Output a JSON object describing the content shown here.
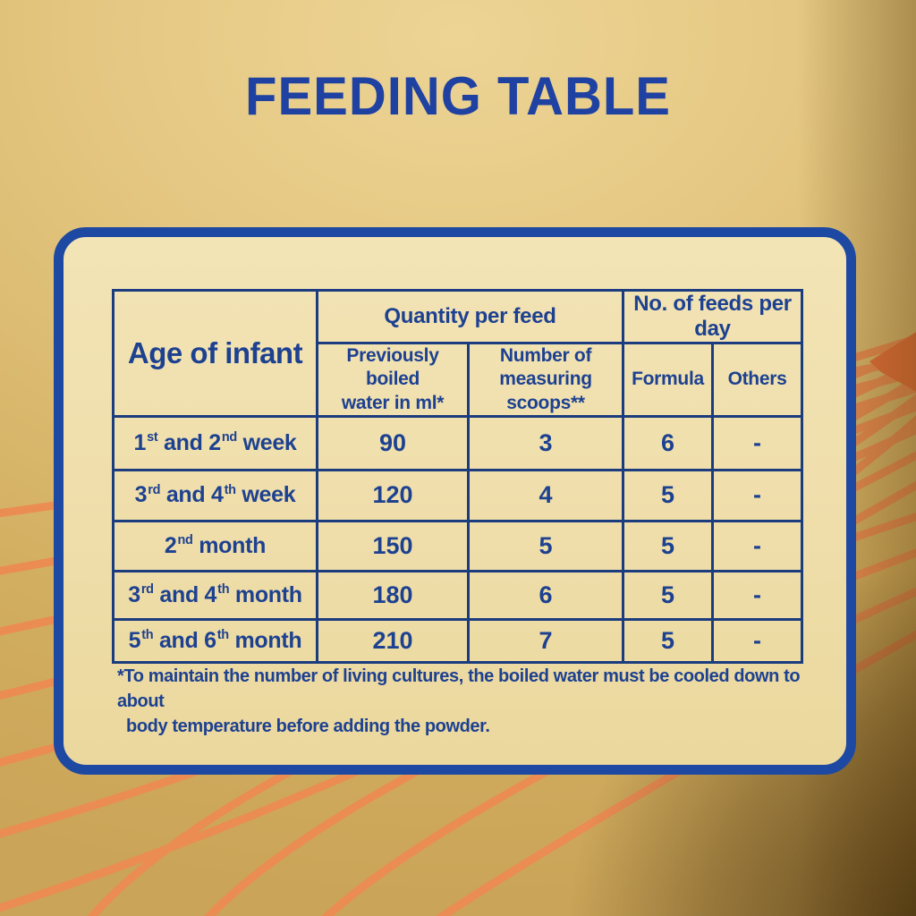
{
  "title": "FEEDING TABLE",
  "table": {
    "age_header": "Age of infant",
    "group_headers": [
      "Quantity per feed",
      "No. of feeds per day"
    ],
    "sub": [
      [
        "Previously boiled",
        "water in ml*"
      ],
      [
        "Number of",
        "measuring scoops**"
      ],
      [
        "Formula"
      ],
      [
        "Others"
      ]
    ],
    "rows": [
      {
        "age_parts": [
          {
            "t": "1"
          },
          {
            "sup": "st"
          },
          {
            "t": " and 2"
          },
          {
            "sup": "nd"
          },
          {
            "t": " week"
          }
        ],
        "water": "90",
        "scoops": "3",
        "formula": "6",
        "others": "-"
      },
      {
        "age_parts": [
          {
            "t": "3"
          },
          {
            "sup": "rd"
          },
          {
            "t": " and 4"
          },
          {
            "sup": "th"
          },
          {
            "t": " week"
          }
        ],
        "water": "120",
        "scoops": "4",
        "formula": "5",
        "others": "-"
      },
      {
        "age_parts": [
          {
            "t": "2"
          },
          {
            "sup": "nd"
          },
          {
            "t": " month"
          }
        ],
        "water": "150",
        "scoops": "5",
        "formula": "5",
        "others": "-"
      },
      {
        "age_parts": [
          {
            "t": "3"
          },
          {
            "sup": "rd"
          },
          {
            "t": " and 4"
          },
          {
            "sup": "th"
          },
          {
            "t": " month"
          }
        ],
        "water": "180",
        "scoops": "6",
        "formula": "5",
        "others": "-"
      },
      {
        "age_parts": [
          {
            "t": "5"
          },
          {
            "sup": "th"
          },
          {
            "t": " and 6"
          },
          {
            "sup": "th"
          },
          {
            "t": " month"
          }
        ],
        "water": "210",
        "scoops": "7",
        "formula": "5",
        "others": "-"
      }
    ]
  },
  "footnote": {
    "line1": "*To maintain the number of living cultures, the boiled water must be cooled down to about",
    "line2": "body temperature before adding the powder."
  },
  "colors": {
    "title_blue": "#1F41A1",
    "panel_border_blue": "#1E49A3",
    "table_line_navy": "#1B3C7E",
    "text_blue": "#1D4191",
    "stripe_orange": "#ED8B53",
    "stripe_hot_orange": "#E8703C",
    "background_gold": "#DCBC72",
    "panel_cream": "#F0E0AC"
  }
}
